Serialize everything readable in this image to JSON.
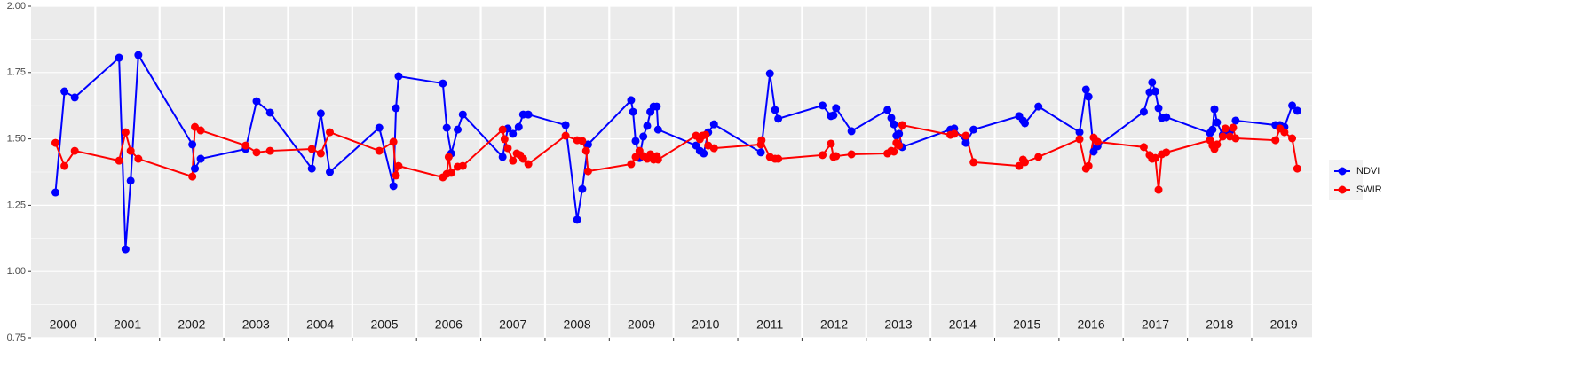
{
  "chart_data": {
    "type": "line",
    "xlim": [
      2000,
      2019.94
    ],
    "xticks": [
      2001,
      2002,
      2003,
      2004,
      2005,
      2006,
      2007,
      2008,
      2009,
      2010,
      2011,
      2012,
      2013,
      2014,
      2015,
      2016,
      2017,
      2018,
      2019
    ],
    "ylim": [
      0.75,
      2.0
    ],
    "yticks": [
      {
        "value": 0.75,
        "label": "0.75"
      },
      {
        "value": 1,
        "label": "1.00"
      },
      {
        "value": 1.25,
        "label": "1.25"
      },
      {
        "value": 1.5,
        "label": "1.50"
      },
      {
        "value": 1.75,
        "label": "1.75"
      },
      {
        "value": 2,
        "label": "2.00"
      }
    ],
    "grid": true,
    "legend": "right",
    "annotations": [
      "2000",
      "2001",
      "2002",
      "2003",
      "2004",
      "2005",
      "2006",
      "2007",
      "2008",
      "2009",
      "2010",
      "2011",
      "2012",
      "2013",
      "2014",
      "2015",
      "2016",
      "2017",
      "2018",
      "2019"
    ],
    "series": [
      {
        "name": "NDVI",
        "color": "#0000ff",
        "x": [
          2000.38,
          2000.52,
          2000.68,
          2001.37,
          2001.47,
          2001.55,
          2001.67,
          2002.51,
          2002.55,
          2002.64,
          2003.34,
          2003.51,
          2003.72,
          2004.37,
          2004.51,
          2004.65,
          2005.42,
          2005.64,
          2005.68,
          2005.72,
          2006.41,
          2006.47,
          2006.54,
          2006.64,
          2006.72,
          2007.34,
          2007.42,
          2007.5,
          2007.59,
          2007.66,
          2007.74,
          2008.32,
          2008.5,
          2008.58,
          2008.67,
          2009.34,
          2009.37,
          2009.41,
          2009.47,
          2009.53,
          2009.59,
          2009.64,
          2009.69,
          2009.74,
          2009.76,
          2010.35,
          2010.41,
          2010.47,
          2010.54,
          2010.63,
          2011.36,
          2011.5,
          2011.58,
          2011.63,
          2012.32,
          2012.45,
          2012.49,
          2012.53,
          2012.77,
          2013.33,
          2013.39,
          2013.43,
          2013.47,
          2013.51,
          2013.56,
          2014.31,
          2014.37,
          2014.55,
          2014.67,
          2015.38,
          2015.44,
          2015.47,
          2015.68,
          2016.32,
          2016.42,
          2016.46,
          2016.54,
          2016.6,
          2017.32,
          2017.41,
          2017.45,
          2017.5,
          2017.55,
          2017.6,
          2017.67,
          2018.35,
          2018.39,
          2018.42,
          2018.46,
          2018.55,
          2018.66,
          2018.75,
          2019.37,
          2019.44,
          2019.51,
          2019.63,
          2019.71
        ],
        "values": [
          1.298,
          1.679,
          1.656,
          1.806,
          1.084,
          1.342,
          1.816,
          1.479,
          1.388,
          1.425,
          1.462,
          1.642,
          1.599,
          1.388,
          1.596,
          1.375,
          1.542,
          1.322,
          1.616,
          1.736,
          1.709,
          1.542,
          1.445,
          1.535,
          1.592,
          1.432,
          1.539,
          1.519,
          1.545,
          1.592,
          1.592,
          1.552,
          1.195,
          1.311,
          1.479,
          1.646,
          1.602,
          1.492,
          1.428,
          1.509,
          1.549,
          1.602,
          1.622,
          1.622,
          1.535,
          1.475,
          1.455,
          1.445,
          1.525,
          1.555,
          1.449,
          1.746,
          1.609,
          1.576,
          1.626,
          1.586,
          1.589,
          1.616,
          1.529,
          1.609,
          1.579,
          1.555,
          1.512,
          1.519,
          1.469,
          1.535,
          1.539,
          1.485,
          1.535,
          1.586,
          1.569,
          1.559,
          1.622,
          1.525,
          1.686,
          1.659,
          1.452,
          1.472,
          1.602,
          1.676,
          1.713,
          1.679,
          1.616,
          1.579,
          1.582,
          1.522,
          1.535,
          1.612,
          1.562,
          1.515,
          1.529,
          1.569,
          1.552,
          1.552,
          1.545,
          1.626,
          1.606
        ]
      },
      {
        "name": "SWIR",
        "color": "#ff0000",
        "x": [
          2000.38,
          2000.52,
          2000.68,
          2001.37,
          2001.47,
          2001.55,
          2001.67,
          2002.51,
          2002.55,
          2002.64,
          2003.34,
          2003.51,
          2003.72,
          2004.37,
          2004.51,
          2004.65,
          2005.42,
          2005.64,
          2005.68,
          2005.72,
          2006.41,
          2006.47,
          2006.5,
          2006.54,
          2006.64,
          2006.72,
          2007.34,
          2007.37,
          2007.42,
          2007.5,
          2007.56,
          2007.61,
          2007.66,
          2007.74,
          2008.32,
          2008.5,
          2008.58,
          2008.64,
          2008.67,
          2009.34,
          2009.41,
          2009.47,
          2009.53,
          2009.59,
          2009.64,
          2009.69,
          2009.74,
          2009.76,
          2010.35,
          2010.41,
          2010.45,
          2010.5,
          2010.54,
          2010.63,
          2011.36,
          2011.37,
          2011.5,
          2011.58,
          2011.63,
          2012.32,
          2012.45,
          2012.49,
          2012.53,
          2012.77,
          2013.33,
          2013.39,
          2013.43,
          2013.47,
          2013.51,
          2013.56,
          2014.31,
          2014.37,
          2014.55,
          2014.67,
          2015.38,
          2015.44,
          2015.47,
          2015.68,
          2016.32,
          2016.42,
          2016.46,
          2016.54,
          2016.6,
          2017.32,
          2017.41,
          2017.45,
          2017.5,
          2017.55,
          2017.6,
          2017.67,
          2018.35,
          2018.39,
          2018.42,
          2018.46,
          2018.55,
          2018.59,
          2018.66,
          2018.71,
          2018.75,
          2019.37,
          2019.44,
          2019.51,
          2019.63,
          2019.71
        ],
        "values": [
          1.485,
          1.398,
          1.455,
          1.418,
          1.525,
          1.455,
          1.425,
          1.358,
          1.545,
          1.532,
          1.475,
          1.449,
          1.455,
          1.462,
          1.445,
          1.525,
          1.455,
          1.489,
          1.362,
          1.398,
          1.355,
          1.368,
          1.432,
          1.372,
          1.395,
          1.398,
          1.535,
          1.499,
          1.465,
          1.418,
          1.445,
          1.439,
          1.425,
          1.405,
          1.512,
          1.495,
          1.492,
          1.455,
          1.378,
          1.405,
          1.432,
          1.455,
          1.435,
          1.425,
          1.442,
          1.422,
          1.435,
          1.422,
          1.512,
          1.499,
          1.512,
          1.515,
          1.475,
          1.465,
          1.479,
          1.495,
          1.432,
          1.425,
          1.425,
          1.439,
          1.482,
          1.432,
          1.435,
          1.442,
          1.445,
          1.455,
          1.452,
          1.485,
          1.475,
          1.552,
          1.515,
          1.519,
          1.512,
          1.412,
          1.398,
          1.422,
          1.412,
          1.432,
          1.499,
          1.388,
          1.398,
          1.505,
          1.489,
          1.469,
          1.439,
          1.425,
          1.428,
          1.308,
          1.442,
          1.449,
          1.495,
          1.475,
          1.462,
          1.479,
          1.509,
          1.539,
          1.509,
          1.542,
          1.502,
          1.495,
          1.539,
          1.525,
          1.502,
          1.388
        ]
      }
    ]
  }
}
